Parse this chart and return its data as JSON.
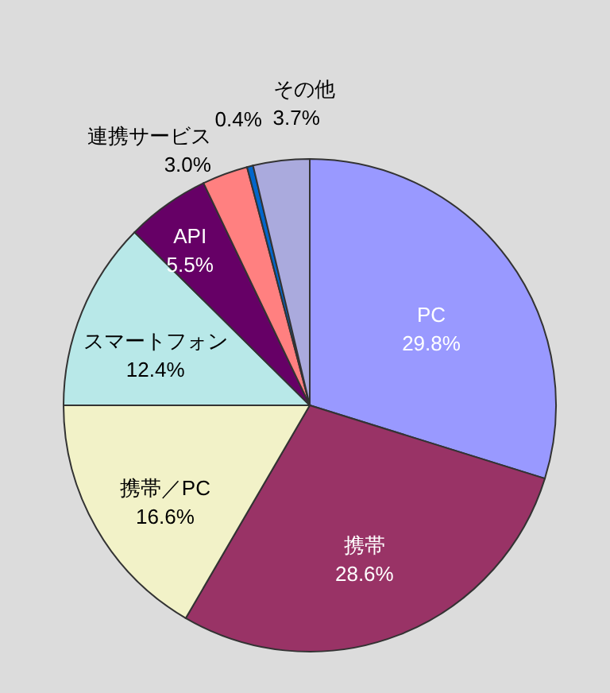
{
  "chart_data": {
    "type": "pie",
    "categories": [
      "PC",
      "携帯",
      "携帯／PC",
      "スマートフォン",
      "API",
      "連携サービス",
      null,
      "その他"
    ],
    "values": [
      29.8,
      28.6,
      16.6,
      12.4,
      5.5,
      3.0,
      0.4,
      3.7
    ],
    "value_labels": [
      "29.8%",
      "28.6%",
      "16.6%",
      "12.4%",
      "5.5%",
      "3.0%",
      "0.4%",
      "3.7%"
    ],
    "colors": [
      "#9999ff",
      "#993366",
      "#f2f2c8",
      "#b8e8e8",
      "#660066",
      "#ff8080",
      "#0066cc",
      "#aaaadd"
    ]
  }
}
